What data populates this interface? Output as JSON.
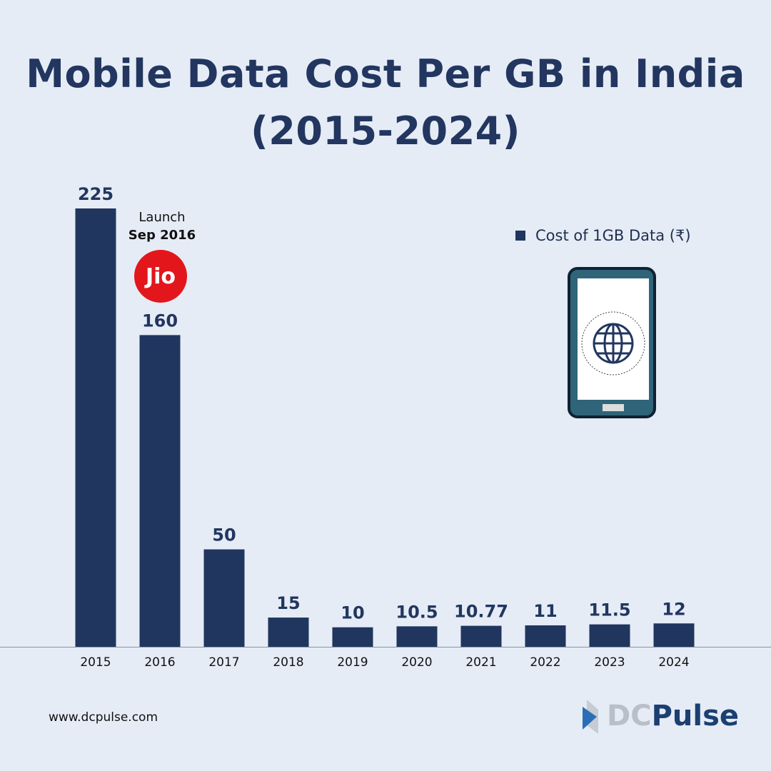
{
  "title_line1": "Mobile Data Cost Per GB in India",
  "title_line2": "(2015-2024)",
  "annotation": {
    "line1": "Launch",
    "line2": "Sep 2016",
    "logo_text": "Jio",
    "logo_color": "#e3161b"
  },
  "footer": {
    "url": "www.dcpulse.com",
    "brand_part1": "DC",
    "brand_part2": "Pulse"
  },
  "icons": [
    "smartphone-icon",
    "globe-icon"
  ],
  "chart_data": {
    "type": "bar",
    "title": "Mobile Data Cost Per GB in India (2015-2024)",
    "categories": [
      "2015",
      "2016",
      "2017",
      "2018",
      "2019",
      "2020",
      "2021",
      "2022",
      "2023",
      "2024"
    ],
    "series": [
      {
        "name": "Cost of 1GB Data (₹)",
        "values": [
          225,
          160,
          50,
          15,
          10,
          10.5,
          10.77,
          11,
          11.5,
          12
        ],
        "color": "#20365f"
      }
    ],
    "data_labels": [
      "225",
      "160",
      "50",
      "15",
      "10",
      "10.5",
      "10.77",
      "11",
      "11.5",
      "12"
    ],
    "ylim": [
      0,
      225
    ],
    "grid": false,
    "legend_position": "top-right"
  }
}
